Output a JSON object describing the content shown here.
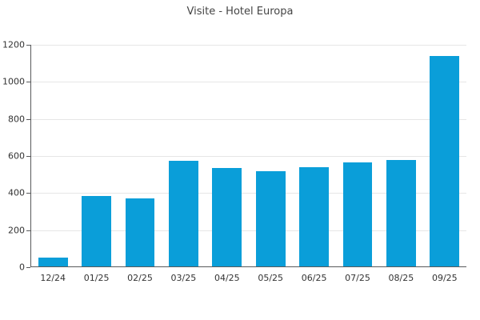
{
  "chart_data": {
    "type": "bar",
    "title": "Visite - Hotel Europa",
    "categories": [
      "12/24",
      "01/25",
      "02/25",
      "03/25",
      "04/25",
      "05/25",
      "06/25",
      "07/25",
      "08/25",
      "09/25"
    ],
    "values": [
      50,
      385,
      370,
      575,
      535,
      520,
      540,
      565,
      580,
      1140
    ],
    "xlabel": "",
    "ylabel": "",
    "ylim": [
      0,
      1200
    ],
    "yticks": [
      0,
      200,
      400,
      600,
      800,
      1000,
      1200
    ],
    "grid": true,
    "legend_position": "none",
    "bar_color": "#0a9ed9"
  },
  "colors": {
    "bar": "#0a9ed9",
    "axis": "#58595b",
    "grid": "#e6e6e6",
    "title_text": "#444444",
    "tick_text": "#333333",
    "background": "#ffffff"
  }
}
